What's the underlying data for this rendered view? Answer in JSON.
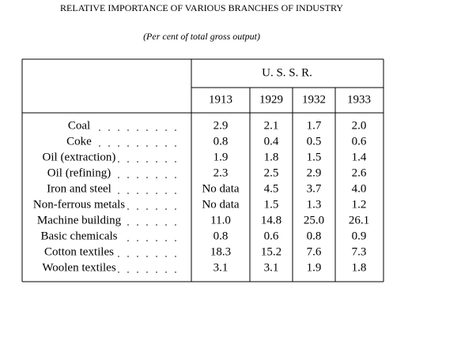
{
  "header": {
    "title": "RELATIVE IMPORTANCE OF VARIOUS BRANCHES OF INDUSTRY",
    "subtitle": "(Per cent of total gross output)"
  },
  "table": {
    "group_header": "U. S. S. R.",
    "columns": [
      "1913",
      "1929",
      "1932",
      "1933"
    ],
    "rows": [
      {
        "label": "Coal",
        "values": [
          "2.9",
          "2.1",
          "1.7",
          "2.0"
        ]
      },
      {
        "label": "Coke",
        "values": [
          "0.8",
          "0.4",
          "0.5",
          "0.6"
        ]
      },
      {
        "label": "Oil (extraction)",
        "values": [
          "1.9",
          "1.8",
          "1.5",
          "1.4"
        ]
      },
      {
        "label": "Oil (refining)",
        "values": [
          "2.3",
          "2.5",
          "2.9",
          "2.6"
        ]
      },
      {
        "label": "Iron and steel",
        "values": [
          "No data",
          "4.5",
          "3.7",
          "4.0"
        ]
      },
      {
        "label": "Non-ferrous metals",
        "values": [
          "No data",
          "1.5",
          "1.3",
          "1.2"
        ]
      },
      {
        "label": "Machine building",
        "values": [
          "11.0",
          "14.8",
          "25.0",
          "26.1"
        ]
      },
      {
        "label": "Basic chemicals",
        "values": [
          "0.8",
          "0.6",
          "0.8",
          "0.9"
        ]
      },
      {
        "label": "Cotton textiles",
        "values": [
          "18.3",
          "15.2",
          "7.6",
          "7.3"
        ]
      },
      {
        "label": "Woolen textiles",
        "values": [
          "3.1",
          "3.1",
          "1.9",
          "1.8"
        ]
      }
    ]
  }
}
